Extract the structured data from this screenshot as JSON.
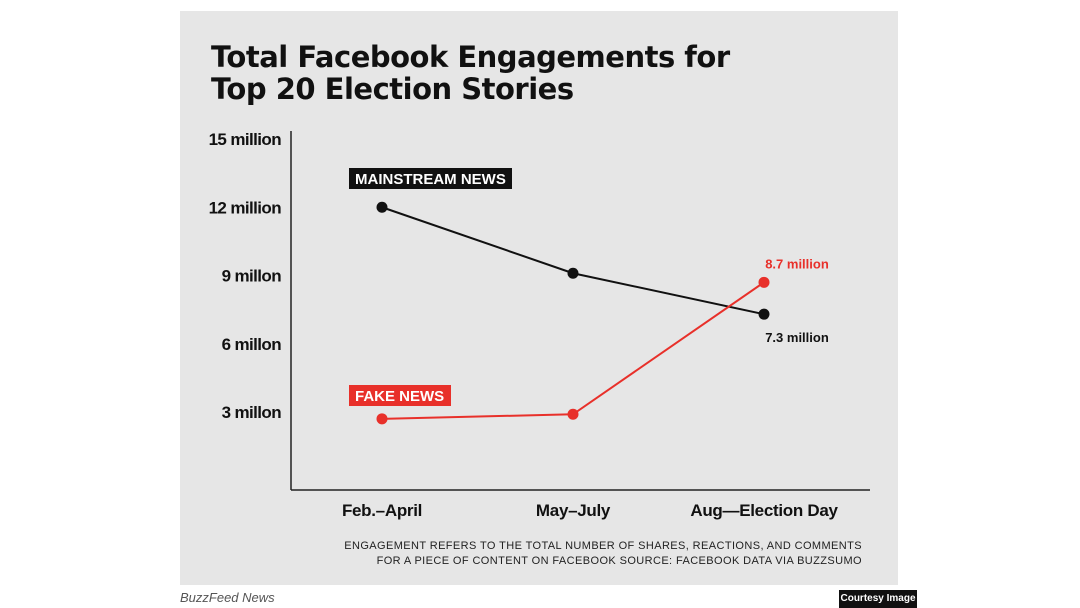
{
  "title_line1": "Total Facebook Engagements for",
  "title_line2": "Top 20 Election Stories",
  "note_line1": "ENGAGEMENT REFERS TO THE TOTAL NUMBER OF SHARES, REACTIONS, AND COMMENTS",
  "note_line2": "FOR A PIECE OF CONTENT ON FACEBOOK SOURCE: FACEBOOK DATA VIA BUZZSUMO",
  "source_credit": "BuzzFeed News",
  "courtesy_badge": "Courtesy Image",
  "chart_data": {
    "type": "line",
    "title": "Total Facebook Engagements for Top 20 Election Stories",
    "categories": [
      "Feb.–April",
      "May–July",
      "Aug—Election Day"
    ],
    "y_ticks": [
      3000000,
      6000000,
      9000000,
      12000000,
      15000000
    ],
    "y_tick_labels": [
      "3 millon",
      "6 millon",
      "9 millon",
      "12 million",
      "15 million"
    ],
    "ylim": [
      0,
      15000000
    ],
    "grid": false,
    "series": [
      {
        "name": "MAINSTREAM NEWS",
        "color": "#111111",
        "values": [
          12000000,
          9100000,
          7300000
        ],
        "point_labels": [
          "",
          "",
          "7.3 million"
        ]
      },
      {
        "name": "FAKE NEWS",
        "color": "#e8302a",
        "values": [
          2700000,
          2900000,
          8700000
        ],
        "point_labels": [
          "",
          "",
          "8.7 million"
        ]
      }
    ]
  }
}
